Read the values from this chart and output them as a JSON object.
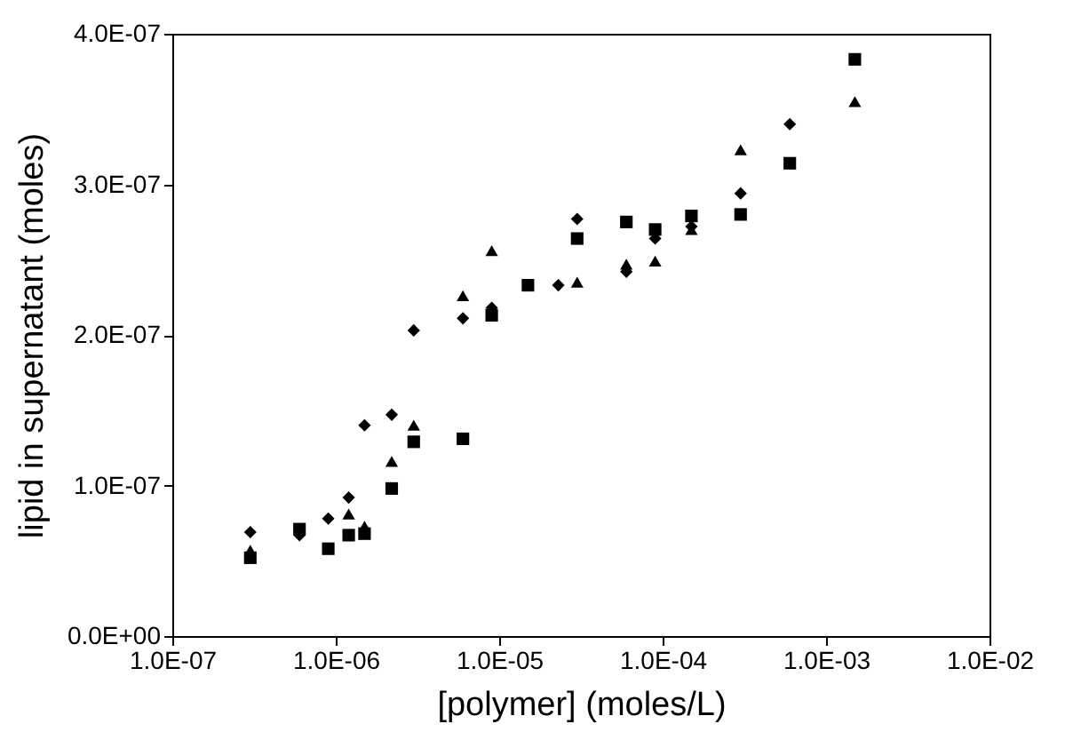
{
  "chart_data": {
    "type": "scatter",
    "xlabel": "[polymer] (moles/L)",
    "ylabel": "lipid in supernatant (moles)",
    "log": "x",
    "grid": false,
    "xlim": [
      1e-07,
      0.01
    ],
    "xticks": [
      {
        "value": 1e-07,
        "label": "1.0E-07"
      },
      {
        "value": 1e-06,
        "label": "1.0E-06"
      },
      {
        "value": 1e-05,
        "label": "1.0E-05"
      },
      {
        "value": 0.0001,
        "label": "1.0E-04"
      },
      {
        "value": 0.001,
        "label": "1.0E-03"
      },
      {
        "value": 0.01,
        "label": "1.0E-02"
      }
    ],
    "ylim": [
      0,
      4e-07
    ],
    "yticks": [
      {
        "value": 0,
        "label": "0.0E+00"
      },
      {
        "value": 1e-07,
        "label": "1.0E-07"
      },
      {
        "value": 2e-07,
        "label": "2.0E-07"
      },
      {
        "value": 3e-07,
        "label": "3.0E-07"
      },
      {
        "value": 4e-07,
        "label": "4.0E-07"
      }
    ],
    "series": [
      {
        "color": "#000000",
        "marker": "diamond",
        "x": [
          3e-07,
          6e-07,
          9e-07,
          1.2e-06,
          1.5e-06,
          2.2e-06,
          3e-06,
          6e-06,
          9e-06,
          2.3e-05,
          3e-05,
          6e-05,
          9e-05,
          0.00015,
          0.0003,
          0.0006
        ],
        "values": [
          6.9e-08,
          6.7e-08,
          7.8e-08,
          9.2e-08,
          1.4e-07,
          1.47e-07,
          2.03e-07,
          2.11e-07,
          2.18e-07,
          2.33e-07,
          2.77e-07,
          2.42e-07,
          2.64e-07,
          2.72e-07,
          2.94e-07,
          3.4e-07
        ]
      },
      {
        "color": "#000000",
        "marker": "square",
        "x": [
          3e-07,
          6e-07,
          9e-07,
          1.2e-06,
          1.5e-06,
          2.2e-06,
          3e-06,
          6e-06,
          9e-06,
          1.5e-05,
          3e-05,
          6e-05,
          9e-05,
          0.00015,
          0.0003,
          0.0006,
          0.0015
        ],
        "values": [
          5.2e-08,
          7.1e-08,
          5.8e-08,
          6.7e-08,
          6.8e-08,
          9.8e-08,
          1.29e-07,
          1.31e-07,
          2.13e-07,
          2.33e-07,
          2.64e-07,
          2.75e-07,
          2.7e-07,
          2.79e-07,
          2.8e-07,
          3.14e-07,
          3.83e-07
        ]
      },
      {
        "color": "#000000",
        "marker": "triangle",
        "x": [
          3e-07,
          1.2e-06,
          1.5e-06,
          2.2e-06,
          3e-06,
          6e-06,
          9e-06,
          3e-05,
          6e-05,
          9e-05,
          0.00015,
          0.0003,
          0.0015
        ],
        "values": [
          5.7e-08,
          8.1e-08,
          7.3e-08,
          1.16e-07,
          1.4e-07,
          2.26e-07,
          2.56e-07,
          2.35e-07,
          2.47e-07,
          2.49e-07,
          2.7e-07,
          3.23e-07,
          3.55e-07
        ]
      }
    ]
  }
}
